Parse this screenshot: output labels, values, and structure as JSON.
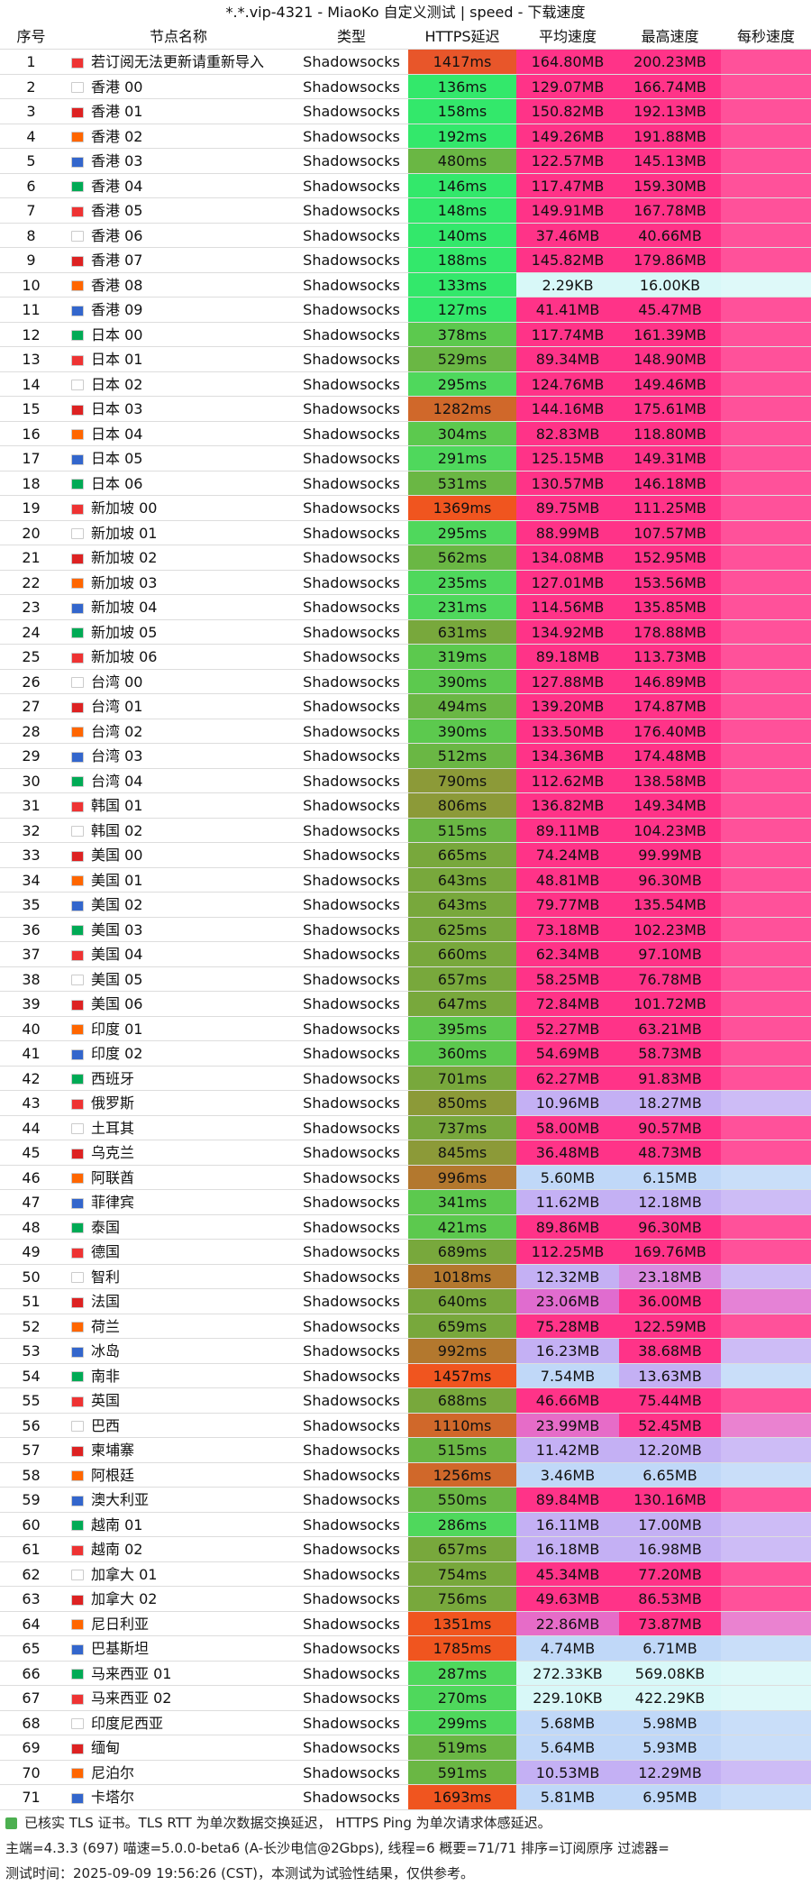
{
  "title": "*.*.vip-4321 - MiaoKo 自定义测试 | speed - 下载速度",
  "table": {
    "headers": [
      "序号",
      "节点名称",
      "类型",
      "HTTPS延迟",
      "平均速度",
      "最高速度",
      "每秒速度"
    ],
    "rows": [
      [
        "1",
        "若订阅无法更新请重新导入",
        "Shadowsocks",
        "1417ms",
        "164.80MB",
        "200.23MB",
        "#e8562a",
        "#ff3388",
        "#ff3388"
      ],
      [
        "2",
        "香港 00",
        "Shadowsocks",
        "136ms",
        "129.07MB",
        "166.74MB",
        "#33e86b",
        "#ff3388",
        "#ff3388"
      ],
      [
        "3",
        "香港 01",
        "Shadowsocks",
        "158ms",
        "150.82MB",
        "192.13MB",
        "#33e86b",
        "#ff3388",
        "#ff3388"
      ],
      [
        "4",
        "香港 02",
        "Shadowsocks",
        "192ms",
        "149.26MB",
        "191.88MB",
        "#33e86b",
        "#ff3388",
        "#ff3388"
      ],
      [
        "5",
        "香港 03",
        "Shadowsocks",
        "480ms",
        "122.57MB",
        "145.13MB",
        "#6ab744",
        "#ff3388",
        "#ff3388"
      ],
      [
        "6",
        "香港 04",
        "Shadowsocks",
        "146ms",
        "117.47MB",
        "159.30MB",
        "#33e86b",
        "#ff3388",
        "#ff3388"
      ],
      [
        "7",
        "香港 05",
        "Shadowsocks",
        "148ms",
        "149.91MB",
        "167.78MB",
        "#33e86b",
        "#ff3388",
        "#ff3388"
      ],
      [
        "8",
        "香港 06",
        "Shadowsocks",
        "140ms",
        "37.46MB",
        "40.66MB",
        "#33e86b",
        "#ff3388",
        "#ff3388"
      ],
      [
        "9",
        "香港 07",
        "Shadowsocks",
        "188ms",
        "145.82MB",
        "179.86MB",
        "#33e86b",
        "#ff3388",
        "#ff3388"
      ],
      [
        "10",
        "香港 08",
        "Shadowsocks",
        "133ms",
        "2.29KB",
        "16.00KB",
        "#33e86b",
        "#d8f8f8",
        "#d8f8f8"
      ],
      [
        "11",
        "香港 09",
        "Shadowsocks",
        "127ms",
        "41.41MB",
        "45.47MB",
        "#33e86b",
        "#ff3388",
        "#ff3388"
      ],
      [
        "12",
        "日本 00",
        "Shadowsocks",
        "378ms",
        "117.74MB",
        "161.39MB",
        "#5cc94e",
        "#ff3388",
        "#ff3388"
      ],
      [
        "13",
        "日本 01",
        "Shadowsocks",
        "529ms",
        "89.34MB",
        "148.90MB",
        "#6ab744",
        "#ff3388",
        "#ff3388"
      ],
      [
        "14",
        "日本 02",
        "Shadowsocks",
        "295ms",
        "124.76MB",
        "149.46MB",
        "#4fd85c",
        "#ff3388",
        "#ff3388"
      ],
      [
        "15",
        "日本 03",
        "Shadowsocks",
        "1282ms",
        "144.16MB",
        "175.61MB",
        "#d0682a",
        "#ff3388",
        "#ff3388"
      ],
      [
        "16",
        "日本 04",
        "Shadowsocks",
        "304ms",
        "82.83MB",
        "118.80MB",
        "#5cc94e",
        "#ff3388",
        "#ff3388"
      ],
      [
        "17",
        "日本 05",
        "Shadowsocks",
        "291ms",
        "125.15MB",
        "149.31MB",
        "#4fd85c",
        "#ff3388",
        "#ff3388"
      ],
      [
        "18",
        "日本 06",
        "Shadowsocks",
        "531ms",
        "130.57MB",
        "146.18MB",
        "#6ab744",
        "#ff3388",
        "#ff3388"
      ],
      [
        "19",
        "新加坡 00",
        "Shadowsocks",
        "1369ms",
        "89.75MB",
        "111.25MB",
        "#f0551f",
        "#ff3388",
        "#ff3388"
      ],
      [
        "20",
        "新加坡 01",
        "Shadowsocks",
        "295ms",
        "88.99MB",
        "107.57MB",
        "#4fd85c",
        "#ff3388",
        "#ff3388"
      ],
      [
        "21",
        "新加坡 02",
        "Shadowsocks",
        "562ms",
        "134.08MB",
        "152.95MB",
        "#6ab744",
        "#ff3388",
        "#ff3388"
      ],
      [
        "22",
        "新加坡 03",
        "Shadowsocks",
        "235ms",
        "127.01MB",
        "153.56MB",
        "#4fd85c",
        "#ff3388",
        "#ff3388"
      ],
      [
        "23",
        "新加坡 04",
        "Shadowsocks",
        "231ms",
        "114.56MB",
        "135.85MB",
        "#4fd85c",
        "#ff3388",
        "#ff3388"
      ],
      [
        "24",
        "新加坡 05",
        "Shadowsocks",
        "631ms",
        "134.92MB",
        "178.88MB",
        "#78a83c",
        "#ff3388",
        "#ff3388"
      ],
      [
        "25",
        "新加坡 06",
        "Shadowsocks",
        "319ms",
        "89.18MB",
        "113.73MB",
        "#5cc94e",
        "#ff3388",
        "#ff3388"
      ],
      [
        "26",
        "台湾 00",
        "Shadowsocks",
        "390ms",
        "127.88MB",
        "146.89MB",
        "#5cc94e",
        "#ff3388",
        "#ff3388"
      ],
      [
        "27",
        "台湾 01",
        "Shadowsocks",
        "494ms",
        "139.20MB",
        "174.87MB",
        "#6ab744",
        "#ff3388",
        "#ff3388"
      ],
      [
        "28",
        "台湾 02",
        "Shadowsocks",
        "390ms",
        "133.50MB",
        "176.40MB",
        "#5cc94e",
        "#ff3388",
        "#ff3388"
      ],
      [
        "29",
        "台湾 03",
        "Shadowsocks",
        "512ms",
        "134.36MB",
        "174.48MB",
        "#6ab744",
        "#ff3388",
        "#ff3388"
      ],
      [
        "30",
        "台湾 04",
        "Shadowsocks",
        "790ms",
        "112.62MB",
        "138.58MB",
        "#8c9a38",
        "#ff3388",
        "#ff3388"
      ],
      [
        "31",
        "韩国 01",
        "Shadowsocks",
        "806ms",
        "136.82MB",
        "149.34MB",
        "#8c9a38",
        "#ff3388",
        "#ff3388"
      ],
      [
        "32",
        "韩国 02",
        "Shadowsocks",
        "515ms",
        "89.11MB",
        "104.23MB",
        "#6ab744",
        "#ff3388",
        "#ff3388"
      ],
      [
        "33",
        "美国 00",
        "Shadowsocks",
        "665ms",
        "74.24MB",
        "99.99MB",
        "#78a83c",
        "#ff3388",
        "#ff3388"
      ],
      [
        "34",
        "美国 01",
        "Shadowsocks",
        "643ms",
        "48.81MB",
        "96.30MB",
        "#78a83c",
        "#ff3388",
        "#ff3388"
      ],
      [
        "35",
        "美国 02",
        "Shadowsocks",
        "643ms",
        "79.77MB",
        "135.54MB",
        "#78a83c",
        "#ff3388",
        "#ff3388"
      ],
      [
        "36",
        "美国 03",
        "Shadowsocks",
        "625ms",
        "73.18MB",
        "102.23MB",
        "#78a83c",
        "#ff3388",
        "#ff3388"
      ],
      [
        "37",
        "美国 04",
        "Shadowsocks",
        "660ms",
        "62.34MB",
        "97.10MB",
        "#78a83c",
        "#ff3388",
        "#ff3388"
      ],
      [
        "38",
        "美国 05",
        "Shadowsocks",
        "657ms",
        "58.25MB",
        "76.78MB",
        "#78a83c",
        "#ff3388",
        "#ff3388"
      ],
      [
        "39",
        "美国 06",
        "Shadowsocks",
        "647ms",
        "72.84MB",
        "101.72MB",
        "#78a83c",
        "#ff3388",
        "#ff3388"
      ],
      [
        "40",
        "印度 01",
        "Shadowsocks",
        "395ms",
        "52.27MB",
        "63.21MB",
        "#5cc94e",
        "#ff3388",
        "#ff3388"
      ],
      [
        "41",
        "印度 02",
        "Shadowsocks",
        "360ms",
        "54.69MB",
        "58.73MB",
        "#5cc94e",
        "#ff3388",
        "#ff3388"
      ],
      [
        "42",
        "西班牙",
        "Shadowsocks",
        "701ms",
        "62.27MB",
        "91.83MB",
        "#78a83c",
        "#ff3388",
        "#ff3388"
      ],
      [
        "43",
        "俄罗斯",
        "Shadowsocks",
        "850ms",
        "10.96MB",
        "18.27MB",
        "#8c9a38",
        "#c4b0f4",
        "#c4b0f4"
      ],
      [
        "44",
        "土耳其",
        "Shadowsocks",
        "737ms",
        "58.00MB",
        "90.57MB",
        "#78a83c",
        "#ff3388",
        "#ff3388"
      ],
      [
        "45",
        "乌克兰",
        "Shadowsocks",
        "845ms",
        "36.48MB",
        "48.73MB",
        "#8c9a38",
        "#ff3388",
        "#ff3388"
      ],
      [
        "46",
        "阿联酋",
        "Shadowsocks",
        "996ms",
        "5.60MB",
        "6.15MB",
        "#b3782e",
        "#c0d8f8",
        "#c0d8f8"
      ],
      [
        "47",
        "菲律宾",
        "Shadowsocks",
        "341ms",
        "11.62MB",
        "12.18MB",
        "#5cc94e",
        "#c4b0f4",
        "#c4b0f4"
      ],
      [
        "48",
        "泰国",
        "Shadowsocks",
        "421ms",
        "89.86MB",
        "96.30MB",
        "#5cc94e",
        "#ff3388",
        "#ff3388"
      ],
      [
        "49",
        "德国",
        "Shadowsocks",
        "689ms",
        "112.25MB",
        "169.76MB",
        "#78a83c",
        "#ff3388",
        "#ff3388"
      ],
      [
        "50",
        "智利",
        "Shadowsocks",
        "1018ms",
        "12.32MB",
        "23.18MB",
        "#b3782e",
        "#c4b0f4",
        "#d98ae0"
      ],
      [
        "51",
        "法国",
        "Shadowsocks",
        "640ms",
        "23.06MB",
        "36.00MB",
        "#78a83c",
        "#e06ccf",
        "#ff3388"
      ],
      [
        "52",
        "荷兰",
        "Shadowsocks",
        "659ms",
        "75.28MB",
        "122.59MB",
        "#78a83c",
        "#ff3388",
        "#ff3388"
      ],
      [
        "53",
        "冰岛",
        "Shadowsocks",
        "992ms",
        "16.23MB",
        "38.68MB",
        "#b3782e",
        "#c4b0f4",
        "#ff3388"
      ],
      [
        "54",
        "南非",
        "Shadowsocks",
        "1457ms",
        "7.54MB",
        "13.63MB",
        "#f0551f",
        "#c0d8f8",
        "#c4b0f4"
      ],
      [
        "55",
        "英国",
        "Shadowsocks",
        "688ms",
        "46.66MB",
        "75.44MB",
        "#78a83c",
        "#ff3388",
        "#ff3388"
      ],
      [
        "56",
        "巴西",
        "Shadowsocks",
        "1110ms",
        "23.99MB",
        "52.45MB",
        "#d0682a",
        "#e66cc8",
        "#ff3388"
      ],
      [
        "57",
        "柬埔寨",
        "Shadowsocks",
        "515ms",
        "11.42MB",
        "12.20MB",
        "#6ab744",
        "#c4b0f4",
        "#c4b0f4"
      ],
      [
        "58",
        "阿根廷",
        "Shadowsocks",
        "1256ms",
        "3.46MB",
        "6.65MB",
        "#d0682a",
        "#c0d8f8",
        "#c0d8f8"
      ],
      [
        "59",
        "澳大利亚",
        "Shadowsocks",
        "550ms",
        "89.84MB",
        "130.16MB",
        "#6ab744",
        "#ff3388",
        "#ff3388"
      ],
      [
        "60",
        "越南 01",
        "Shadowsocks",
        "286ms",
        "16.11MB",
        "17.00MB",
        "#4fd85c",
        "#c4b0f4",
        "#c4b0f4"
      ],
      [
        "61",
        "越南 02",
        "Shadowsocks",
        "657ms",
        "16.18MB",
        "16.98MB",
        "#78a83c",
        "#c4b0f4",
        "#c4b0f4"
      ],
      [
        "62",
        "加拿大 01",
        "Shadowsocks",
        "754ms",
        "45.34MB",
        "77.20MB",
        "#78a83c",
        "#ff3388",
        "#ff3388"
      ],
      [
        "63",
        "加拿大 02",
        "Shadowsocks",
        "756ms",
        "49.63MB",
        "86.53MB",
        "#78a83c",
        "#ff3388",
        "#ff3388"
      ],
      [
        "64",
        "尼日利亚",
        "Shadowsocks",
        "1351ms",
        "22.86MB",
        "73.87MB",
        "#f0551f",
        "#e66cc8",
        "#ff3388"
      ],
      [
        "65",
        "巴基斯坦",
        "Shadowsocks",
        "1785ms",
        "4.74MB",
        "6.71MB",
        "#f0551f",
        "#c0d8f8",
        "#c0d8f8"
      ],
      [
        "66",
        "马来西亚 01",
        "Shadowsocks",
        "287ms",
        "272.33KB",
        "569.08KB",
        "#4fd85c",
        "#d8f8f8",
        "#d8f8f8"
      ],
      [
        "67",
        "马来西亚 02",
        "Shadowsocks",
        "270ms",
        "229.10KB",
        "422.29KB",
        "#4fd85c",
        "#d8f8f8",
        "#d8f8f8"
      ],
      [
        "68",
        "印度尼西亚",
        "Shadowsocks",
        "299ms",
        "5.68MB",
        "5.98MB",
        "#4fd85c",
        "#c0d8f8",
        "#c0d8f8"
      ],
      [
        "69",
        "缅甸",
        "Shadowsocks",
        "519ms",
        "5.64MB",
        "5.93MB",
        "#6ab744",
        "#c0d8f8",
        "#c0d8f8"
      ],
      [
        "70",
        "尼泊尔",
        "Shadowsocks",
        "591ms",
        "10.53MB",
        "12.29MB",
        "#6ab744",
        "#c4b0f4",
        "#c4b0f4"
      ],
      [
        "71",
        "卡塔尔",
        "Shadowsocks",
        "1693ms",
        "5.81MB",
        "6.95MB",
        "#f0551f",
        "#c0d8f8",
        "#c0d8f8"
      ]
    ]
  },
  "footer": [
    "已核实 TLS 证书。TLS RTT 为单次数据交换延迟， HTTPS Ping 为单次请求体感延迟。",
    "主端=4.3.3 (697) 喵速=5.0.0-beta6 (A-长沙电信@2Gbps), 线程=6 概要=71/71 排序=订阅原序 过滤器=",
    "测试时间：2025-09-09 19:56:26 (CST)，本测试为试验性结果，仅供参考。"
  ]
}
